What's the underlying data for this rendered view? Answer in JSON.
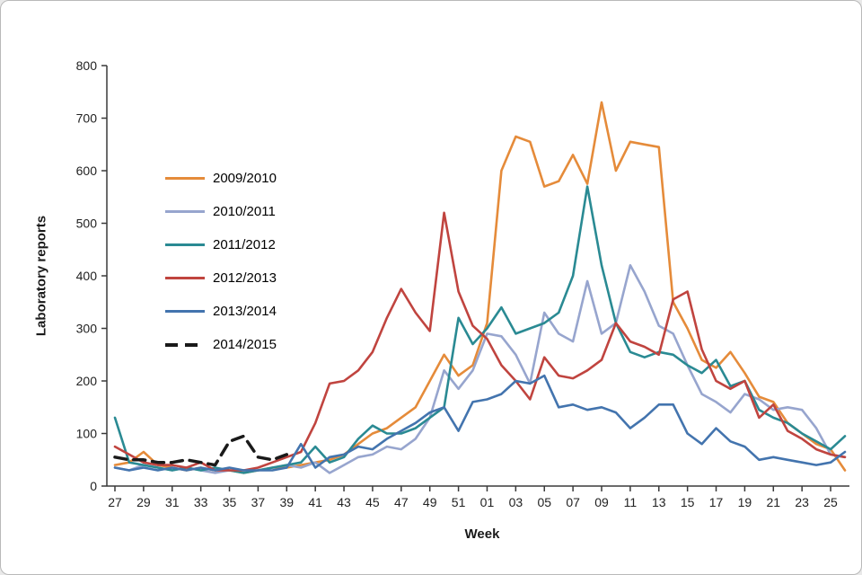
{
  "chart_data": {
    "type": "line",
    "xlabel": "Week",
    "ylabel": "Laboratory reports",
    "ylim": [
      0,
      800
    ],
    "y_ticks": [
      0,
      100,
      200,
      300,
      400,
      500,
      600,
      700,
      800
    ],
    "grid": false,
    "legend_position": "upper-left-inside",
    "x": [
      "27",
      "28",
      "29",
      "30",
      "31",
      "32",
      "33",
      "34",
      "35",
      "36",
      "37",
      "38",
      "39",
      "40",
      "41",
      "42",
      "43",
      "44",
      "45",
      "46",
      "47",
      "48",
      "49",
      "50",
      "51",
      "52",
      "01",
      "02",
      "03",
      "04",
      "05",
      "06",
      "07",
      "08",
      "09",
      "10",
      "11",
      "12",
      "13",
      "14",
      "15",
      "16",
      "17",
      "18",
      "19",
      "20",
      "21",
      "22",
      "23",
      "24",
      "25",
      "26"
    ],
    "x_tick_labels": [
      "27",
      "29",
      "31",
      "33",
      "35",
      "37",
      "39",
      "41",
      "43",
      "45",
      "47",
      "49",
      "51",
      "01",
      "03",
      "05",
      "07",
      "09",
      "11",
      "13",
      "15",
      "17",
      "19",
      "21",
      "23",
      "25"
    ],
    "series": [
      {
        "name": "2009/2010",
        "color": "#E58B3A",
        "style": "solid",
        "values": [
          40,
          45,
          65,
          40,
          35,
          30,
          35,
          30,
          30,
          25,
          30,
          35,
          35,
          40,
          45,
          50,
          60,
          80,
          100,
          110,
          130,
          150,
          200,
          250,
          210,
          230,
          310,
          600,
          665,
          655,
          570,
          580,
          630,
          575,
          730,
          600,
          655,
          650,
          645,
          350,
          300,
          240,
          225,
          255,
          215,
          170,
          160,
          120,
          100,
          80,
          70,
          30
        ]
      },
      {
        "name": "2010/2011",
        "color": "#97A5CE",
        "style": "solid",
        "values": [
          35,
          30,
          40,
          35,
          30,
          35,
          30,
          25,
          30,
          30,
          30,
          35,
          40,
          35,
          45,
          25,
          40,
          55,
          60,
          75,
          70,
          90,
          130,
          220,
          185,
          220,
          290,
          285,
          250,
          195,
          330,
          290,
          275,
          390,
          290,
          310,
          420,
          370,
          305,
          290,
          230,
          175,
          160,
          140,
          175,
          165,
          145,
          150,
          145,
          110,
          60,
          55
        ]
      },
      {
        "name": "2011/2012",
        "color": "#2A8A93",
        "style": "solid",
        "values": [
          130,
          45,
          40,
          35,
          30,
          35,
          30,
          35,
          30,
          25,
          30,
          35,
          40,
          45,
          75,
          45,
          55,
          90,
          115,
          100,
          100,
          110,
          130,
          150,
          320,
          270,
          300,
          340,
          290,
          300,
          310,
          330,
          400,
          570,
          420,
          310,
          255,
          245,
          255,
          250,
          230,
          215,
          240,
          190,
          200,
          145,
          130,
          120,
          100,
          85,
          70,
          95
        ]
      },
      {
        "name": "2012/2013",
        "color": "#C0443F",
        "style": "solid",
        "values": [
          75,
          60,
          45,
          40,
          40,
          35,
          45,
          30,
          30,
          30,
          35,
          45,
          55,
          65,
          120,
          195,
          200,
          220,
          255,
          320,
          375,
          330,
          295,
          520,
          370,
          305,
          280,
          230,
          200,
          165,
          245,
          210,
          205,
          220,
          240,
          310,
          275,
          265,
          250,
          355,
          370,
          260,
          200,
          185,
          200,
          130,
          155,
          105,
          90,
          70,
          60,
          55
        ]
      },
      {
        "name": "2013/2014",
        "color": "#4374AE",
        "style": "solid",
        "values": [
          35,
          30,
          35,
          30,
          35,
          30,
          35,
          30,
          35,
          30,
          30,
          30,
          35,
          80,
          35,
          55,
          60,
          75,
          70,
          90,
          105,
          120,
          140,
          150,
          105,
          160,
          165,
          175,
          200,
          195,
          210,
          150,
          155,
          145,
          150,
          140,
          110,
          130,
          155,
          155,
          100,
          80,
          110,
          85,
          75,
          50,
          55,
          50,
          45,
          40,
          45,
          65
        ]
      },
      {
        "name": "2014/2015",
        "color": "#1A1A1A",
        "style": "dashed",
        "values": [
          55,
          50,
          50,
          45,
          45,
          50,
          45,
          40,
          85,
          95,
          55,
          50,
          60,
          null,
          null,
          null,
          null,
          null,
          null,
          null,
          null,
          null,
          null,
          null,
          null,
          null,
          null,
          null,
          null,
          null,
          null,
          null,
          null,
          null,
          null,
          null,
          null,
          null,
          null,
          null,
          null,
          null,
          null,
          null,
          null,
          null,
          null,
          null,
          null,
          null,
          null,
          null
        ]
      }
    ]
  }
}
